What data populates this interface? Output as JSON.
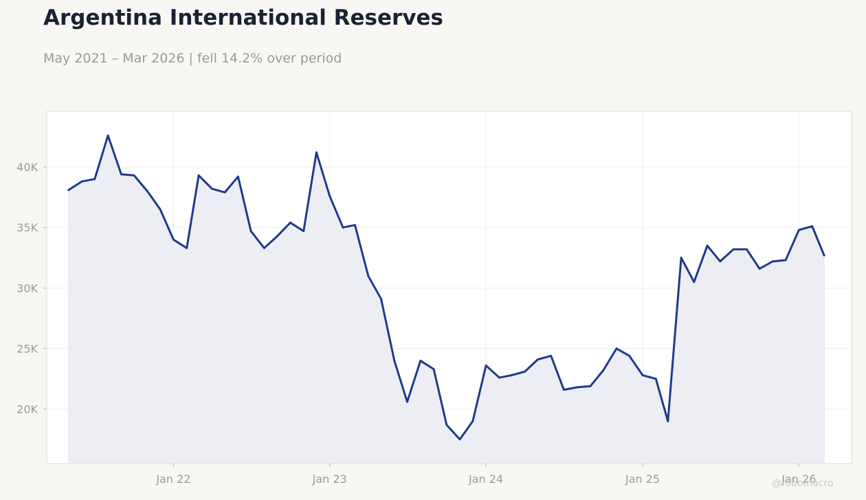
{
  "title": "Argentina International Reserves",
  "subtitle": "May 2021 – Mar 2026 | fell 14.2% over period",
  "watermark": "@robomacro",
  "colors": {
    "background": "#f8f7f4",
    "plot_background": "#ffffff",
    "line": "#1f3a8a",
    "area_fill": "#edeef4",
    "grid": "#efeff3",
    "tick_text": "#9a9a96",
    "title": "#1a2233"
  },
  "chart_data": {
    "type": "area",
    "title": "Argentina International Reserves",
    "subtitle": "May 2021 – Mar 2026 | fell 14.2% over period",
    "xlabel": "",
    "ylabel": "",
    "grid": true,
    "legend": "none",
    "ylim": [
      15500,
      44600
    ],
    "xlim": [
      "2021-03-11",
      "2026-05-04"
    ],
    "y_ticks": [
      {
        "value": 20000,
        "label": "20K"
      },
      {
        "value": 25000,
        "label": "25K"
      },
      {
        "value": 30000,
        "label": "30K"
      },
      {
        "value": 35000,
        "label": "35K"
      },
      {
        "value": 40000,
        "label": "40K"
      }
    ],
    "x_ticks": [
      {
        "date": "2022-01-01",
        "label": "Jan 22"
      },
      {
        "date": "2023-01-01",
        "label": "Jan 23"
      },
      {
        "date": "2024-01-01",
        "label": "Jan 24"
      },
      {
        "date": "2025-01-01",
        "label": "Jan 25"
      },
      {
        "date": "2026-01-01",
        "label": "Jan 26"
      }
    ],
    "series": [
      {
        "x": [
          "2021-05-01",
          "2021-06-01",
          "2021-07-01",
          "2021-08-01",
          "2021-09-01",
          "2021-10-01",
          "2021-11-01",
          "2021-12-01",
          "2022-01-01",
          "2022-02-01",
          "2022-03-01",
          "2022-04-01",
          "2022-05-01",
          "2022-06-01",
          "2022-07-01",
          "2022-08-01",
          "2022-09-01",
          "2022-10-01",
          "2022-11-01",
          "2022-12-01",
          "2023-01-01",
          "2023-02-01",
          "2023-03-01",
          "2023-04-01",
          "2023-05-01",
          "2023-06-01",
          "2023-07-01",
          "2023-08-01",
          "2023-09-01",
          "2023-10-01",
          "2023-11-01",
          "2023-12-01",
          "2024-01-01",
          "2024-02-01",
          "2024-03-01",
          "2024-04-01",
          "2024-05-01",
          "2024-06-01",
          "2024-07-01",
          "2024-08-01",
          "2024-09-01",
          "2024-10-01",
          "2024-11-01",
          "2024-12-01",
          "2025-01-01",
          "2025-02-01",
          "2025-03-01",
          "2025-04-01",
          "2025-05-01",
          "2025-06-01",
          "2025-07-01",
          "2025-08-01",
          "2025-09-01",
          "2025-10-01",
          "2025-11-01",
          "2025-12-01",
          "2026-01-01",
          "2026-02-01",
          "2026-03-01"
        ],
        "values": [
          38100,
          38800,
          39000,
          42600,
          39400,
          39300,
          38000,
          36500,
          34000,
          33300,
          39300,
          38200,
          37900,
          39200,
          34700,
          33300,
          34300,
          35400,
          34700,
          41200,
          37600,
          35000,
          35200,
          31000,
          29100,
          24000,
          20600,
          24000,
          23300,
          18700,
          17500,
          19000,
          23600,
          22600,
          22800,
          23100,
          24100,
          24400,
          21600,
          21800,
          21900,
          23200,
          25000,
          24400,
          22800,
          22500,
          19000,
          32500,
          30500,
          33500,
          32200,
          33200,
          33200,
          31600,
          32200,
          32300,
          34800,
          35100,
          32700
        ]
      }
    ]
  }
}
